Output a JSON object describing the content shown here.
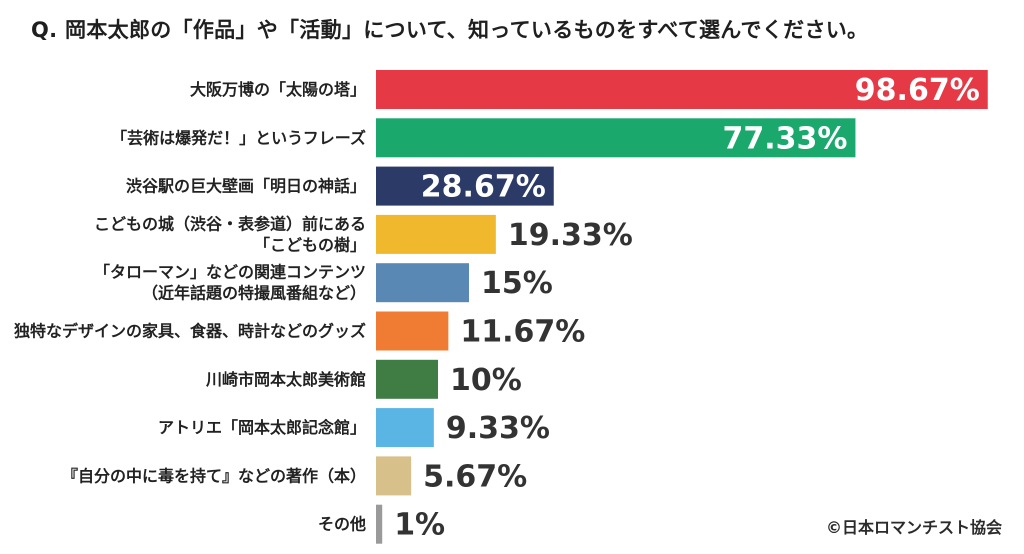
{
  "header": {
    "question": "Q. 岡本太郎の「作品」や「活動」について、知っているものをすべて選んでください。"
  },
  "footer": {
    "copyright": "©日本ロマンチスト協会"
  },
  "chart_data": {
    "type": "bar",
    "orientation": "horizontal",
    "title": "Q. 岡本太郎の「作品」や「活動」について、知っているものをすべて選んでください。",
    "unit": "%",
    "categories": [
      [
        "大阪万博の「太陽の塔」"
      ],
      [
        "「芸術は爆発だ！」というフレーズ"
      ],
      [
        "渋谷駅の巨大壁画「明日の神話」"
      ],
      [
        "こどもの城（渋谷・表参道）前にある",
        "「こどもの樹」"
      ],
      [
        "「タローマン」などの関連コンテンツ",
        "（近年話題の特撮風番組など）"
      ],
      [
        "独特なデザインの家具、食器、時計などのグッズ"
      ],
      [
        "川崎市岡本太郎美術館"
      ],
      [
        "アトリエ「岡本太郎記念館」"
      ],
      [
        "『自分の中に毒を持て』などの著作（本）"
      ],
      [
        "その他"
      ]
    ],
    "values": [
      98.67,
      77.33,
      28.67,
      19.33,
      15,
      11.67,
      10,
      9.33,
      5.67,
      1
    ],
    "value_labels": [
      "98.67%",
      "77.33%",
      "28.67%",
      "19.33%",
      "15%",
      "11.67%",
      "10%",
      "9.33%",
      "5.67%",
      "1%"
    ],
    "colors": [
      "#e63946",
      "#1aa86d",
      "#2b3a67",
      "#f0b92d",
      "#5a88b4",
      "#f07b33",
      "#3f7d45",
      "#5ab5e5",
      "#d8c08a",
      "#9a9a9a"
    ],
    "label_inside": [
      true,
      true,
      true,
      false,
      false,
      false,
      false,
      false,
      false,
      false
    ],
    "xlim": [
      0,
      100
    ],
    "grid": false,
    "legend": "none"
  }
}
